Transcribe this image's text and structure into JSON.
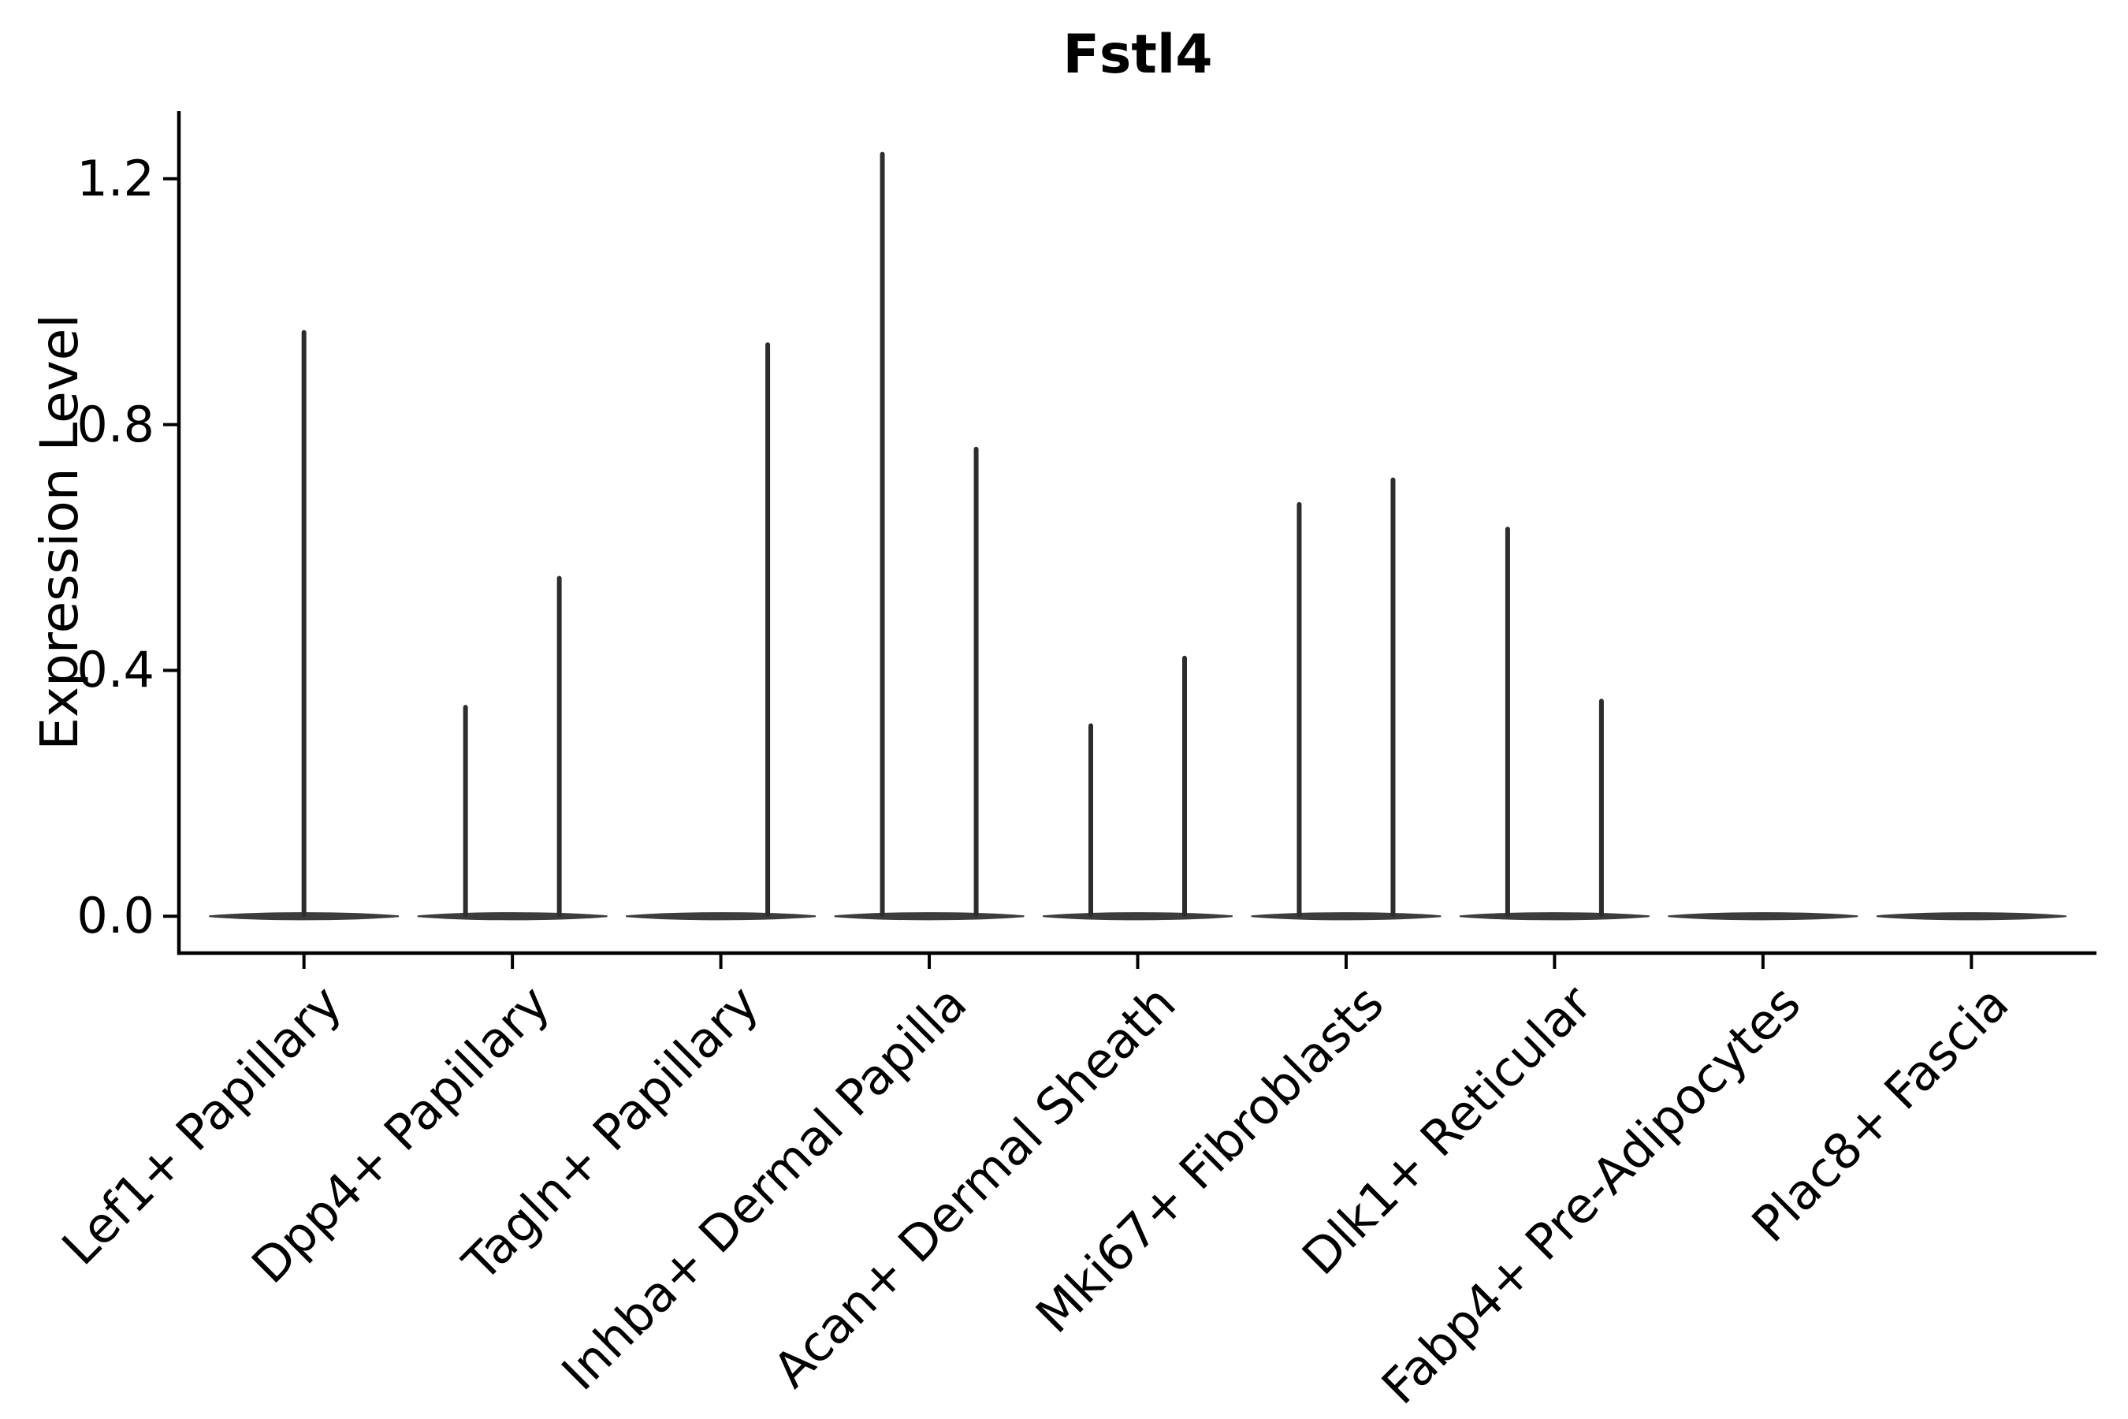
{
  "chart_data": {
    "type": "violin",
    "title": "Fstl4",
    "ylabel": "Expression Level",
    "xlabel": "",
    "yticks": [
      0.0,
      0.4,
      0.8,
      1.2
    ],
    "ylim": [
      -0.06,
      1.31
    ],
    "grid": false,
    "legend_position": "none",
    "background": "#ffffff",
    "axis_color": "#000000",
    "violin_color": "#2d2d2d",
    "baseline_color": "#3c3c3c",
    "baseline_value": 0.0,
    "violins": [
      {
        "label": "Lef1+ Papillary",
        "spikes": [
          {
            "offset": 0.0,
            "max_expression": 0.95
          }
        ]
      },
      {
        "label": "Dpp4+ Papillary",
        "spikes": [
          {
            "offset": -0.225,
            "max_expression": 0.34
          },
          {
            "offset": 0.225,
            "max_expression": 0.55
          }
        ]
      },
      {
        "label": "Tagln+ Papillary",
        "spikes": [
          {
            "offset": 0.225,
            "max_expression": 0.93
          }
        ]
      },
      {
        "label": "Inhba+ Dermal Papilla",
        "spikes": [
          {
            "offset": -0.225,
            "max_expression": 1.24
          },
          {
            "offset": 0.225,
            "max_expression": 0.76
          }
        ]
      },
      {
        "label": "Acan+ Dermal Sheath",
        "spikes": [
          {
            "offset": -0.225,
            "max_expression": 0.31
          },
          {
            "offset": 0.225,
            "max_expression": 0.42
          }
        ]
      },
      {
        "label": "Mki67+ Fibroblasts",
        "spikes": [
          {
            "offset": -0.225,
            "max_expression": 0.67
          },
          {
            "offset": 0.225,
            "max_expression": 0.71
          }
        ]
      },
      {
        "label": "Dlk1+ Reticular",
        "spikes": [
          {
            "offset": -0.225,
            "max_expression": 0.63
          },
          {
            "offset": 0.225,
            "max_expression": 0.35
          }
        ]
      },
      {
        "label": "Fabp4+ Pre-Adipocytes",
        "spikes": []
      },
      {
        "label": "Plac8+ Fascia",
        "spikes": []
      }
    ]
  }
}
